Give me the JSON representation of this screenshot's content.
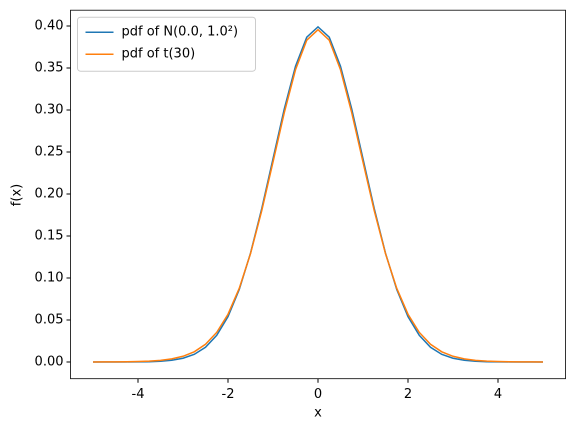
{
  "chart_data": {
    "type": "line",
    "xlabel": "x",
    "ylabel": "f(x)",
    "x": [
      -5,
      -4.75,
      -4.5,
      -4.25,
      -4,
      -3.75,
      -3.5,
      -3.25,
      -3,
      -2.75,
      -2.5,
      -2.25,
      -2,
      -1.75,
      -1.5,
      -1.25,
      -1,
      -0.75,
      -0.5,
      -0.25,
      0,
      0.25,
      0.5,
      0.75,
      1,
      1.25,
      1.5,
      1.75,
      2,
      2.25,
      2.5,
      2.75,
      3,
      3.25,
      3.5,
      3.75,
      4,
      4.25,
      4.5,
      4.75,
      5
    ],
    "series": [
      {
        "name": "pdf of N(0.0, 1.0²)",
        "color": "#1f77b4",
        "values": [
          0.0,
          1e-05,
          2e-05,
          5e-05,
          0.00013,
          0.00035,
          0.00087,
          0.00203,
          0.00443,
          0.00909,
          0.01753,
          0.03174,
          0.05399,
          0.08628,
          0.12952,
          0.18265,
          0.24197,
          0.30114,
          0.35207,
          0.38667,
          0.39894,
          0.38667,
          0.35207,
          0.30114,
          0.24197,
          0.18265,
          0.12952,
          0.08628,
          0.05399,
          0.03174,
          0.01753,
          0.00909,
          0.00443,
          0.00203,
          0.00087,
          0.00035,
          0.00013,
          5e-05,
          2e-05,
          1e-05,
          0.0
        ]
      },
      {
        "name": "pdf of t(30)",
        "color": "#ff7f0e",
        "values": [
          3e-05,
          7e-05,
          0.00013,
          0.00027,
          0.00052,
          0.00102,
          0.00196,
          0.00369,
          0.00678,
          0.01213,
          0.02106,
          0.03528,
          0.05685,
          0.08768,
          0.12896,
          0.1801,
          0.23799,
          0.29665,
          0.34788,
          0.38307,
          0.39563,
          0.38307,
          0.34788,
          0.29665,
          0.23799,
          0.1801,
          0.12896,
          0.08768,
          0.05685,
          0.03528,
          0.02106,
          0.01213,
          0.00678,
          0.00369,
          0.00196,
          0.00102,
          0.00052,
          0.00027,
          0.00013,
          7e-05,
          3e-05
        ]
      }
    ],
    "xlim": [
      -5.5,
      5.5
    ],
    "xticks": [
      -4,
      -2,
      0,
      2,
      4
    ],
    "ylim": [
      -0.0199,
      0.4188
    ],
    "yticks": [
      {
        "value": 0,
        "label": "0.00"
      },
      0.05,
      {
        "value": 0.1,
        "label": "0.10"
      },
      0.15,
      {
        "value": 0.2,
        "label": "0.20"
      },
      0.25,
      {
        "value": 0.3,
        "label": "0.30"
      },
      0.35,
      {
        "value": 0.4,
        "label": "0.40"
      }
    ],
    "legend": "upper left",
    "grid": false
  }
}
